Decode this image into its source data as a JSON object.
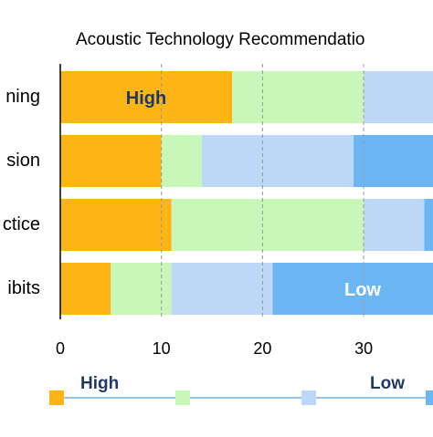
{
  "chart_data": {
    "type": "bar",
    "orientation": "horizontal",
    "stacked": true,
    "title": "Acoustic Technology Recommendatio",
    "categories": [
      "ning",
      "sion",
      "ctice",
      "ibits"
    ],
    "series": [
      {
        "color": "#fdb515",
        "values": [
          17,
          10,
          11,
          5
        ]
      },
      {
        "color": "#c9f6b9",
        "values": [
          13,
          4,
          19,
          6
        ]
      },
      {
        "color": "#bdd7f6",
        "values": [
          7,
          15,
          6,
          10
        ]
      },
      {
        "color": "#6db6f4",
        "values": [
          0,
          8,
          1,
          16
        ]
      }
    ],
    "xlim": [
      0,
      37
    ],
    "xticks": [
      0,
      10,
      20,
      30
    ],
    "grid": true,
    "annotations": [
      "High",
      "Low"
    ],
    "legend": {
      "labels": [
        "High",
        "Low"
      ]
    }
  }
}
